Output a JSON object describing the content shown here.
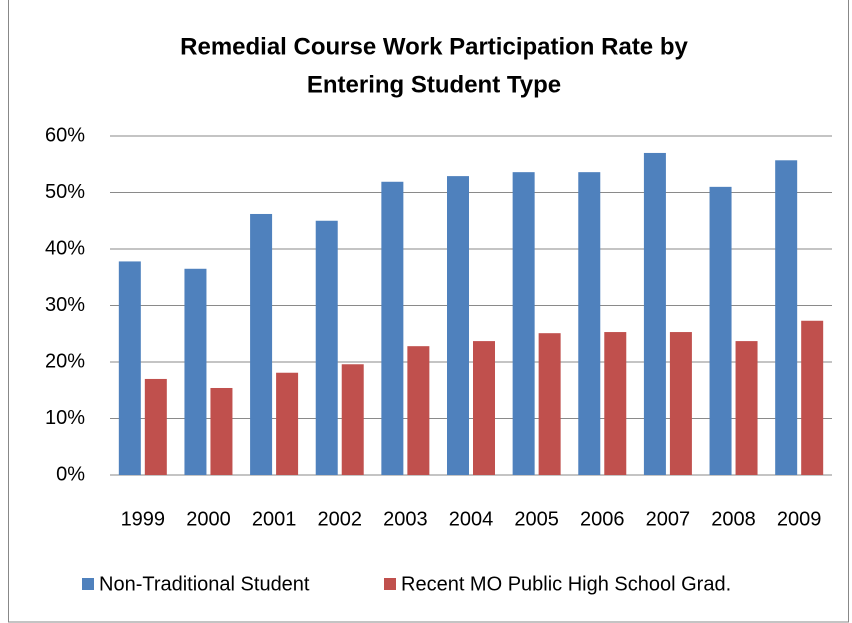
{
  "chart_data": {
    "type": "bar",
    "title": [
      "Remedial Course Work Participation Rate by",
      "Entering Student Type"
    ],
    "categories": [
      "1999",
      "2000",
      "2001",
      "2002",
      "2003",
      "2004",
      "2005",
      "2006",
      "2007",
      "2008",
      "2009"
    ],
    "series": [
      {
        "name": "Non-Traditional Student",
        "color": "#4f81bd",
        "values": [
          37.8,
          36.5,
          46.2,
          45,
          51.9,
          52.9,
          53.6,
          53.6,
          57,
          51,
          55.7
        ]
      },
      {
        "name": "Recent MO Public High School Grad.",
        "color": "#c0504d",
        "values": [
          17,
          15.4,
          18.1,
          19.6,
          22.8,
          23.7,
          25.1,
          25.3,
          25.3,
          23.7,
          27.3
        ]
      }
    ],
    "ylim": [
      0,
      60
    ],
    "yticks": [
      {
        "value": 0,
        "label": "0%"
      },
      {
        "value": 10,
        "label": "10%"
      },
      {
        "value": 20,
        "label": "20%"
      },
      {
        "value": 30,
        "label": "30%"
      },
      {
        "value": 40,
        "label": "40%"
      },
      {
        "value": 50,
        "label": "50%"
      },
      {
        "value": 60,
        "label": "60%"
      }
    ],
    "grid": true,
    "legend": "bottom"
  }
}
